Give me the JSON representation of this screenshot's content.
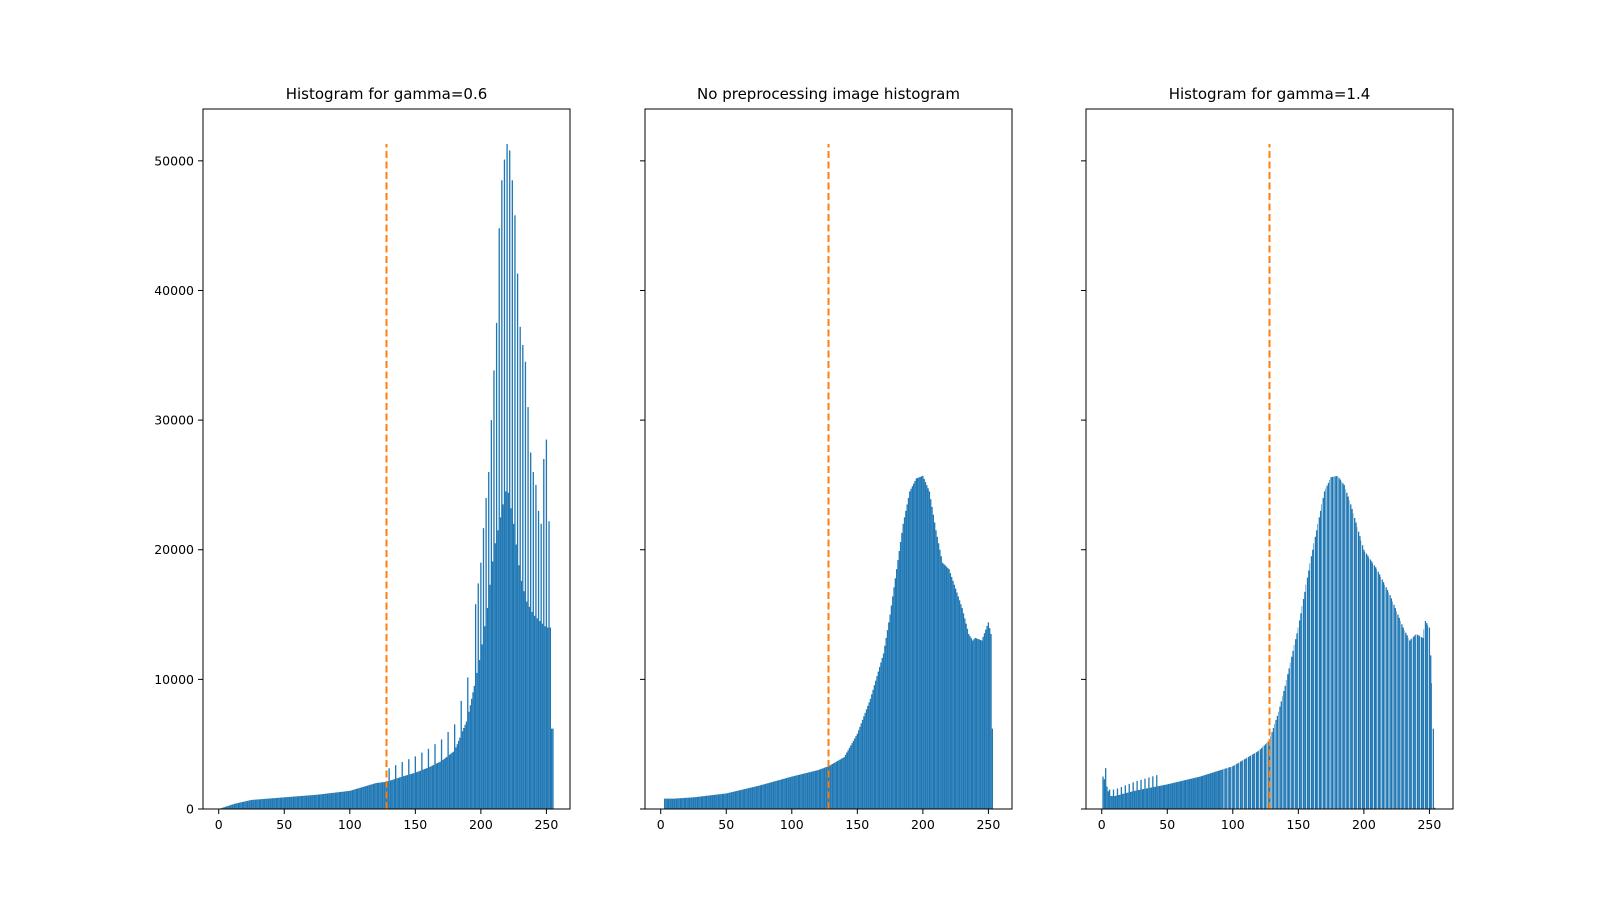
{
  "chart_data": [
    {
      "type": "bar",
      "title": "Histogram for gamma=0.6",
      "xlabel": "",
      "ylabel": "",
      "xlim": [
        -12,
        268
      ],
      "ylim": [
        0,
        54000
      ],
      "xticks": [
        "0",
        "50",
        "100",
        "150",
        "200",
        "250"
      ],
      "yticks": [
        "0",
        "10000",
        "20000",
        "30000",
        "40000",
        "50000"
      ],
      "grid": false,
      "threshold": {
        "x": 128,
        "y_max": 51300,
        "color": "#ff7f0e",
        "style": "dashed"
      },
      "bar_color": "#1f77b4",
      "shape": "spiky",
      "peak": {
        "x": 220,
        "y": 51300
      },
      "series": [
        {
          "x": [
            0,
            12,
            25,
            50,
            75,
            100,
            120,
            128,
            140,
            150,
            160,
            170,
            180,
            190,
            195,
            200,
            205,
            210,
            215,
            220,
            225,
            230,
            235,
            240,
            245,
            250,
            253,
            254
          ],
          "values": [
            0,
            400,
            700,
            900,
            1100,
            1400,
            2000,
            2100,
            2500,
            2800,
            3200,
            3700,
            4500,
            7000,
            9500,
            12000,
            15500,
            20000,
            22500,
            25000,
            22000,
            18000,
            16000,
            15000,
            14500,
            14000,
            14000,
            6200
          ]
        },
        {
          "x": [
            195,
            200,
            203,
            206,
            209,
            212,
            214,
            216,
            218,
            220,
            222,
            224,
            226,
            228,
            230,
            232,
            234,
            236,
            238,
            240,
            242,
            244,
            246,
            248,
            250,
            252
          ],
          "values": [
            15000,
            19000,
            23000,
            26000,
            32000,
            37500,
            44800,
            48500,
            50100,
            51300,
            50800,
            48500,
            45800,
            41300,
            37200,
            35800,
            34500,
            31000,
            27500,
            26000,
            25000,
            23000,
            22000,
            27000,
            28500,
            22200
          ]
        }
      ]
    },
    {
      "type": "bar",
      "title": "No preprocessing image histogram",
      "xlabel": "",
      "ylabel": "",
      "xlim": [
        -12,
        268
      ],
      "ylim": [
        0,
        54000
      ],
      "xticks": [
        "0",
        "50",
        "100",
        "150",
        "200",
        "250"
      ],
      "grid": false,
      "threshold": {
        "x": 128,
        "y_max": 51300,
        "color": "#ff7f0e",
        "style": "dashed"
      },
      "bar_color": "#1f77b4",
      "shape": "smooth",
      "peak": {
        "x": 200,
        "y": 25700
      },
      "series": [
        {
          "x": [
            0,
            2,
            3,
            10,
            25,
            50,
            75,
            100,
            120,
            128,
            140,
            150,
            160,
            170,
            175,
            180,
            185,
            190,
            195,
            200,
            205,
            210,
            215,
            220,
            225,
            230,
            235,
            238,
            240,
            245,
            250,
            252,
            253,
            254
          ],
          "values": [
            0,
            0,
            800,
            800,
            900,
            1200,
            1800,
            2500,
            3000,
            3300,
            4000,
            5800,
            8500,
            12000,
            15000,
            18500,
            22000,
            24500,
            25500,
            25700,
            24500,
            21500,
            19000,
            18500,
            17000,
            15500,
            13500,
            13000,
            13200,
            13000,
            14400,
            13500,
            6200,
            0
          ]
        }
      ]
    },
    {
      "type": "bar",
      "title": "Histogram for gamma=1.4",
      "xlabel": "",
      "ylabel": "",
      "xlim": [
        -12,
        268
      ],
      "ylim": [
        0,
        54000
      ],
      "xticks": [
        "0",
        "50",
        "100",
        "150",
        "200",
        "250"
      ],
      "grid": false,
      "threshold": {
        "x": 128,
        "y_max": 51300,
        "color": "#ff7f0e",
        "style": "dashed"
      },
      "bar_color": "#1f77b4",
      "shape": "comb",
      "peak": {
        "x": 180,
        "y": 25700
      },
      "series": [
        {
          "x": [
            0,
            1,
            3,
            6,
            10,
            25,
            50,
            75,
            100,
            120,
            128,
            135,
            140,
            150,
            160,
            165,
            170,
            175,
            180,
            185,
            190,
            200,
            210,
            220,
            230,
            235,
            240,
            245,
            247,
            250,
            252,
            253,
            254,
            255
          ],
          "values": [
            0,
            2500,
            2100,
            1000,
            1000,
            1400,
            1900,
            2500,
            3300,
            4500,
            5300,
            7500,
            9500,
            14000,
            19500,
            22000,
            24500,
            25600,
            25700,
            25000,
            23500,
            20000,
            18500,
            16500,
            14000,
            13000,
            13500,
            13200,
            14500,
            14000,
            9700,
            6200,
            100,
            0
          ]
        }
      ]
    }
  ]
}
